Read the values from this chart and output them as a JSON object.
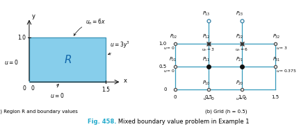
{
  "fig_label": "Fig. 458.",
  "fig_caption": "   Mixed boundary value problem in Example 1",
  "sub_a_caption": "(a.) Region R and boundary values",
  "sub_b_caption": "(b) Grid (h = 0.5)",
  "rect_color": "#87CEEB",
  "rect_edge": "#4499BB",
  "grid_color": "#3399BB",
  "caption_color": "#22AACC"
}
